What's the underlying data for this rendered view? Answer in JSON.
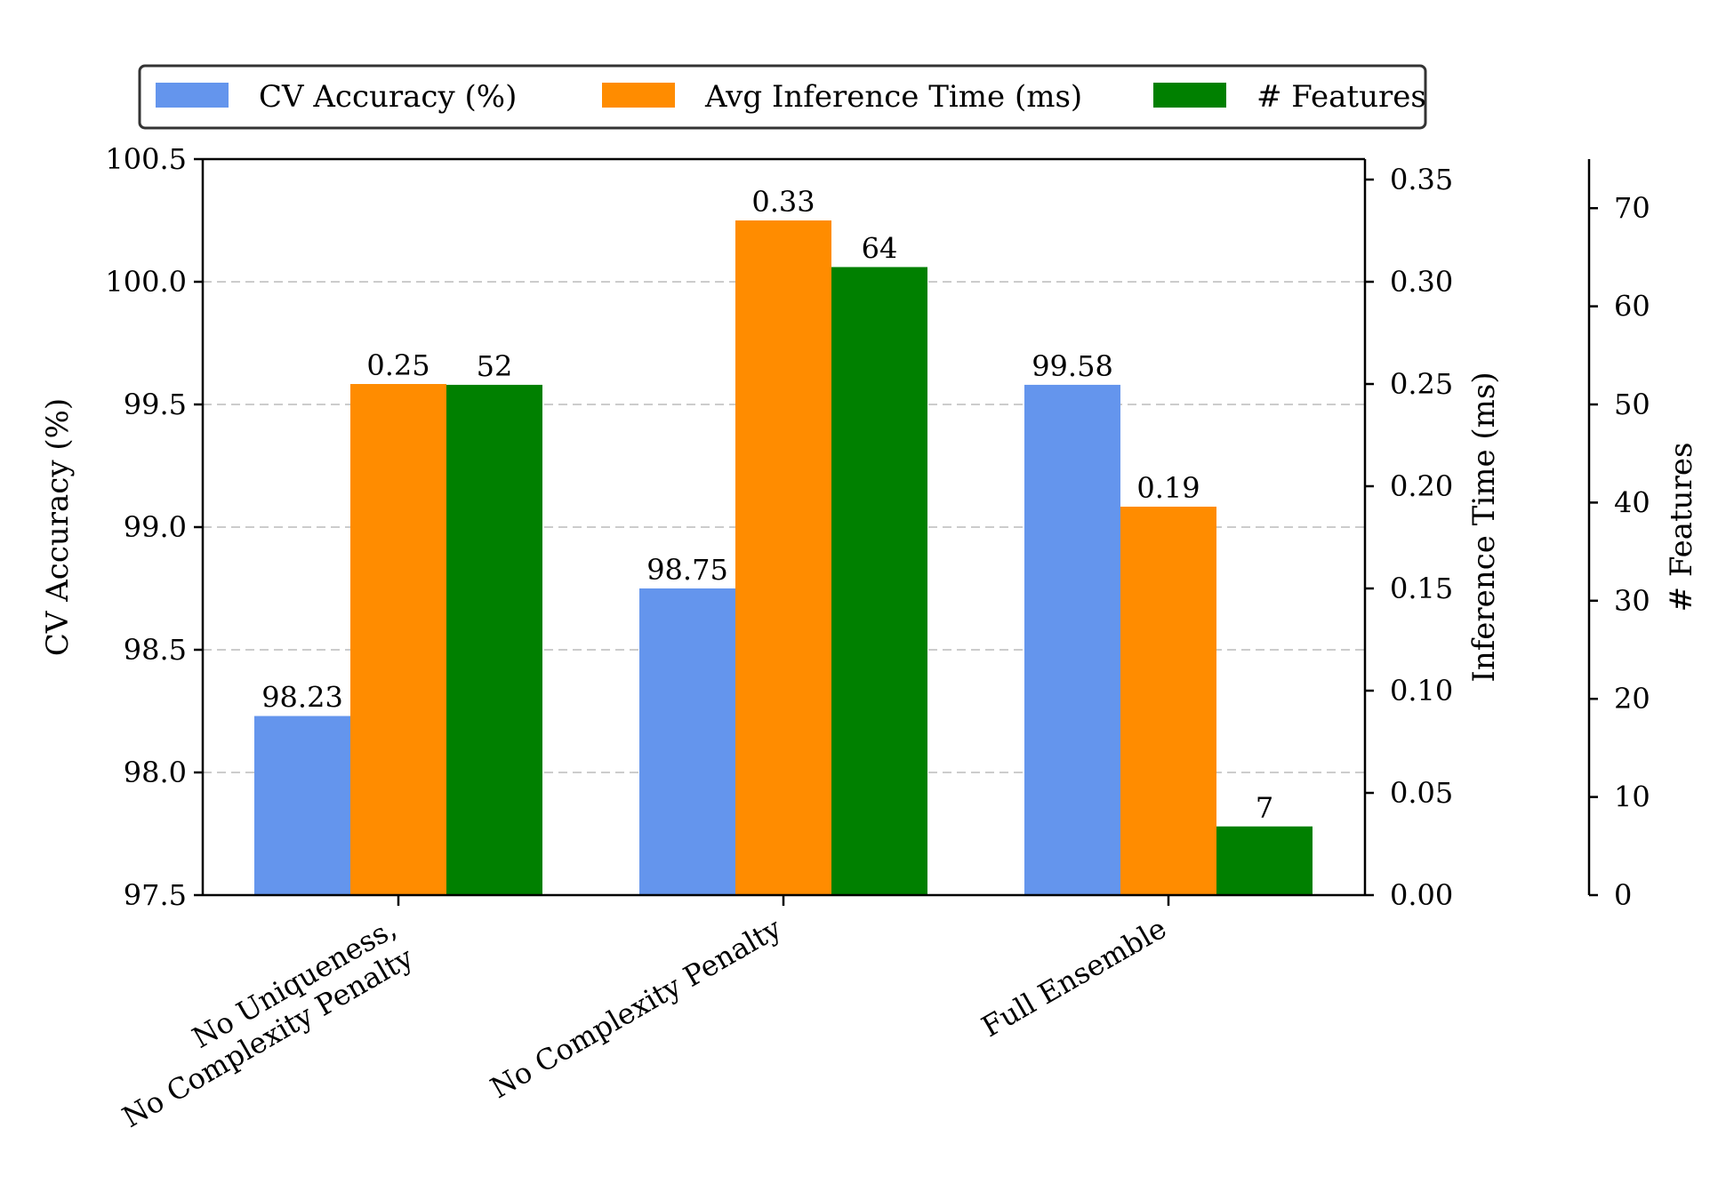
{
  "chart_data": {
    "type": "bar",
    "categories": [
      [
        "No Uniqueness,",
        "No Complexity Penalty"
      ],
      [
        "No Complexity Penalty"
      ],
      [
        "Full Ensemble"
      ]
    ],
    "series": [
      {
        "name": "CV Accuracy (%)",
        "axis": "left",
        "color": "#6495ED",
        "values": [
          98.23,
          98.75,
          99.58
        ],
        "labels": [
          "98.23",
          "98.75",
          "99.58"
        ]
      },
      {
        "name": "Avg Inference Time (ms)",
        "axis": "right",
        "color": "#FF8C00",
        "values": [
          0.25,
          0.33,
          0.19
        ],
        "labels": [
          "0.25",
          "0.33",
          "0.19"
        ]
      },
      {
        "name": "# Features",
        "axis": "far-right",
        "color": "#008000",
        "values": [
          52,
          64,
          7
        ],
        "labels": [
          "52",
          "64",
          "7"
        ]
      }
    ],
    "axes": {
      "left": {
        "label": "CV Accuracy (%)",
        "range": [
          97.5,
          100.5
        ],
        "ticks": [
          "97.5",
          "98.0",
          "98.5",
          "99.0",
          "99.5",
          "100.0",
          "100.5"
        ]
      },
      "right": {
        "label": "Inference Time (ms)",
        "range": [
          0,
          0.36
        ],
        "ticks": [
          "0.00",
          "0.05",
          "0.10",
          "0.15",
          "0.20",
          "0.25",
          "0.30",
          "0.35"
        ]
      },
      "far_right": {
        "label": "# Features",
        "range": [
          0,
          75
        ],
        "ticks": [
          "0",
          "10",
          "20",
          "30",
          "40",
          "50",
          "60",
          "70"
        ]
      }
    },
    "grid": "horizontal-dashed",
    "legend": {
      "position": "top-center",
      "entries": [
        "CV Accuracy (%)",
        "Avg Inference Time (ms)",
        "# Features"
      ]
    }
  }
}
